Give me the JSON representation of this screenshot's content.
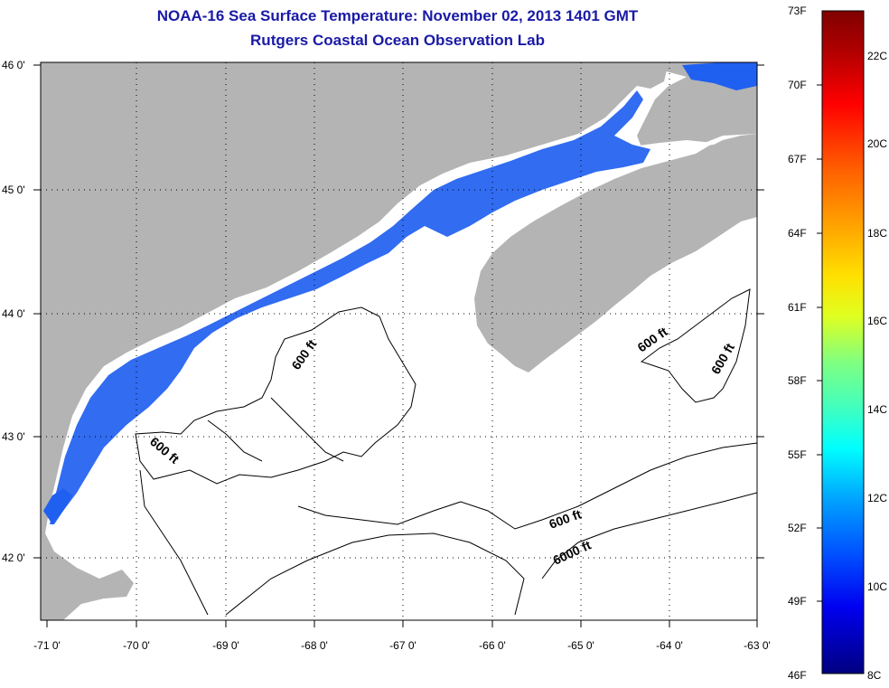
{
  "title": {
    "line1": "NOAA-16 Sea Surface Temperature:  November 02, 2013 1401 GMT",
    "line2": "Rutgers Coastal Ocean Observation Lab"
  },
  "axes": {
    "lat_labels": [
      "46 0'",
      "45 0'",
      "44 0'",
      "43 0'",
      "42 0'"
    ],
    "lon_labels": [
      "-71 0'",
      "-70 0'",
      "-69 0'",
      "-68 0'",
      "-67 0'",
      "-66 0'",
      "-65 0'",
      "-64 0'",
      "-63 0'"
    ]
  },
  "contours": {
    "labels": [
      "600 ft",
      "600 ft",
      "600 ft",
      "600 ft",
      "600 ft",
      "6000 ft"
    ]
  },
  "colorbar": {
    "f_labels": [
      "73F",
      "70F",
      "67F",
      "64F",
      "61F",
      "58F",
      "55F",
      "52F",
      "49F",
      "46F"
    ],
    "c_labels": [
      "22C",
      "20C",
      "18C",
      "16C",
      "14C",
      "12C",
      "10C",
      "8C"
    ],
    "colors": [
      "#800000",
      "#c00000",
      "#ff0000",
      "#ff4000",
      "#ff8000",
      "#ffc000",
      "#ffff00",
      "#c0ff40",
      "#80ff80",
      "#40ffc0",
      "#00ffff",
      "#00c0ff",
      "#0080ff",
      "#0040ff",
      "#0000ff",
      "#0000c0",
      "#000080"
    ]
  },
  "colors": {
    "land": "#b4b4b4",
    "ocean": "#ffffff",
    "sst_water": "#2060f0",
    "title": "#1a1aa6"
  }
}
